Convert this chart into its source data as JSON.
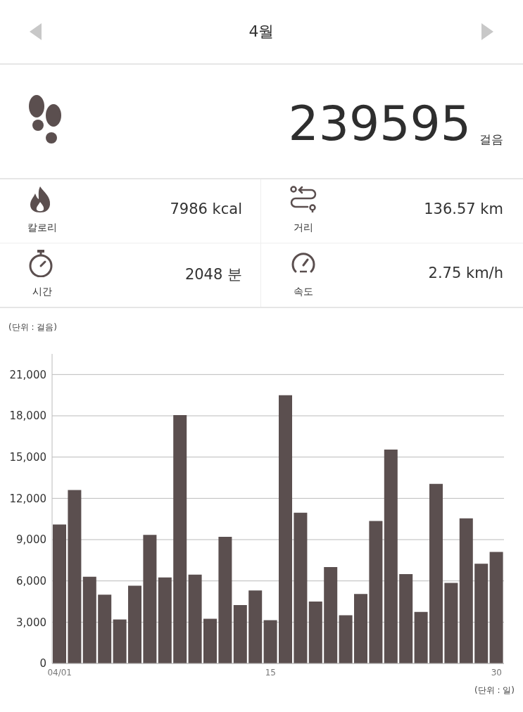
{
  "chart_data": [
    {
      "type": "other",
      "title": "4월",
      "annotations": [
        "239595",
        "걸음",
        "칼로리",
        "7986 kcal",
        "거리",
        "136.57 km",
        "시간",
        "2048 분",
        "속도",
        "2.75 km/h"
      ]
    },
    {
      "type": "bar",
      "ylabel": "(단위 : 걸음)",
      "xlabel": "(단위 : 일)",
      "color": "#5b4f4f",
      "categories": [
        "04/01",
        null,
        null,
        null,
        null,
        null,
        null,
        null,
        null,
        null,
        null,
        null,
        null,
        null,
        "15",
        null,
        null,
        null,
        null,
        null,
        null,
        null,
        null,
        null,
        null,
        null,
        null,
        null,
        null,
        "30"
      ],
      "values": [
        10100,
        12600,
        6300,
        5000,
        3200,
        5650,
        9350,
        6250,
        18050,
        6450,
        3250,
        9200,
        4250,
        5300,
        3150,
        19500,
        10950,
        4500,
        7000,
        3500,
        5050,
        10350,
        15550,
        6500,
        3750,
        13050,
        5850,
        10550,
        7250,
        8100
      ],
      "ylim": [
        0,
        22500
      ],
      "yticks": [
        0,
        {
          "value": 3000,
          "label": "3,000"
        },
        {
          "value": 6000,
          "label": "6,000"
        },
        {
          "value": 9000,
          "label": "9,000"
        },
        {
          "value": 12000,
          "label": "12,000"
        },
        {
          "value": 15000,
          "label": "15,000"
        },
        {
          "value": 18000,
          "label": "18,000"
        },
        {
          "value": 21000,
          "label": "21,000"
        }
      ],
      "grid": "y"
    }
  ]
}
